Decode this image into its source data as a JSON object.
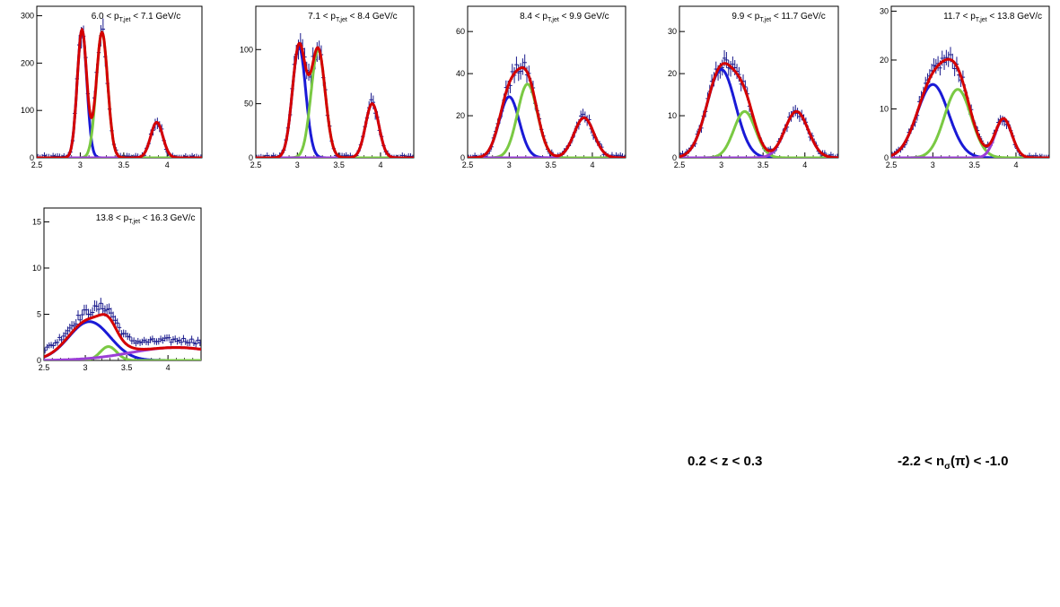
{
  "chart_data": [
    {
      "type": "scatter",
      "title_parts": {
        "lo": "6.0",
        "hi": "7.1",
        "unit": "GeV/c"
      },
      "xlim": [
        2.5,
        4.4
      ],
      "ylim": [
        0,
        320
      ],
      "xticks": [
        "2.5",
        "3",
        "3.5",
        "4"
      ],
      "xtick_values": [
        2.5,
        3,
        3.5,
        4
      ],
      "yticks": [
        "0",
        "100",
        "200",
        "300"
      ],
      "ytick_values": [
        0,
        100,
        200,
        300
      ],
      "components": [
        {
          "color": "#1a1ad6",
          "mu": 3.02,
          "sigma": 0.055,
          "amp": 270
        },
        {
          "color": "#7ac943",
          "mu": 3.25,
          "sigma": 0.065,
          "amp": 265
        },
        {
          "color": "#9b3fd6",
          "mu": 3.88,
          "sigma": 0.07,
          "amp": 75
        }
      ],
      "total_color": "#d40000",
      "error_scale": 14
    },
    {
      "type": "scatter",
      "title_parts": {
        "lo": "7.1",
        "hi": "8.4",
        "unit": "GeV/c"
      },
      "xlim": [
        2.5,
        4.4
      ],
      "ylim": [
        0,
        140
      ],
      "xticks": [
        "2.5",
        "3",
        "3.5",
        "4"
      ],
      "xtick_values": [
        2.5,
        3,
        3.5,
        4
      ],
      "yticks": [
        "0",
        "50",
        "100"
      ],
      "ytick_values": [
        0,
        50,
        100
      ],
      "components": [
        {
          "color": "#1a1ad6",
          "mu": 3.02,
          "sigma": 0.08,
          "amp": 103
        },
        {
          "color": "#7ac943",
          "mu": 3.25,
          "sigma": 0.085,
          "amp": 100
        },
        {
          "color": "#9b3fd6",
          "mu": 3.9,
          "sigma": 0.08,
          "amp": 50
        }
      ],
      "total_color": "#d40000",
      "error_scale": 9
    },
    {
      "type": "scatter",
      "title_parts": {
        "lo": "8.4",
        "hi": "9.9",
        "unit": "GeV/c"
      },
      "xlim": [
        2.5,
        4.4
      ],
      "ylim": [
        0,
        72
      ],
      "xticks": [
        "2.5",
        "3",
        "3.5",
        "4"
      ],
      "xtick_values": [
        2.5,
        3,
        3.5,
        4
      ],
      "yticks": [
        "0",
        "20",
        "40",
        "60"
      ],
      "ytick_values": [
        0,
        20,
        40,
        60
      ],
      "components": [
        {
          "color": "#1a1ad6",
          "mu": 3.0,
          "sigma": 0.12,
          "amp": 29
        },
        {
          "color": "#7ac943",
          "mu": 3.22,
          "sigma": 0.12,
          "amp": 35
        },
        {
          "color": "#9b3fd6",
          "mu": 3.9,
          "sigma": 0.12,
          "amp": 19
        }
      ],
      "total_color": "#d40000",
      "error_scale": 6
    },
    {
      "type": "scatter",
      "title_parts": {
        "lo": "9.9",
        "hi": "11.7",
        "unit": "GeV/c"
      },
      "xlim": [
        2.5,
        4.4
      ],
      "ylim": [
        0,
        36
      ],
      "xticks": [
        "2.5",
        "3",
        "3.5",
        "4"
      ],
      "xtick_values": [
        2.5,
        3,
        3.5,
        4
      ],
      "yticks": [
        "0",
        "10",
        "20",
        "30"
      ],
      "ytick_values": [
        0,
        10,
        20,
        30
      ],
      "components": [
        {
          "color": "#1a1ad6",
          "mu": 3.0,
          "sigma": 0.17,
          "amp": 21
        },
        {
          "color": "#7ac943",
          "mu": 3.28,
          "sigma": 0.13,
          "amp": 11
        },
        {
          "color": "#9b3fd6",
          "mu": 3.9,
          "sigma": 0.14,
          "amp": 11
        }
      ],
      "total_color": "#d40000",
      "error_scale": 4
    },
    {
      "type": "scatter",
      "title_parts": {
        "lo": "11.7",
        "hi": "13.8",
        "unit": "GeV/c"
      },
      "xlim": [
        2.5,
        4.4
      ],
      "ylim": [
        0,
        31
      ],
      "xticks": [
        "2.5",
        "3",
        "3.5",
        "4"
      ],
      "xtick_values": [
        2.5,
        3,
        3.5,
        4
      ],
      "yticks": [
        "0",
        "10",
        "20",
        "30"
      ],
      "ytick_values": [
        0,
        10,
        20,
        30
      ],
      "components": [
        {
          "color": "#1a1ad6",
          "mu": 3.0,
          "sigma": 0.19,
          "amp": 15
        },
        {
          "color": "#7ac943",
          "mu": 3.3,
          "sigma": 0.16,
          "amp": 14
        },
        {
          "color": "#9b3fd6",
          "mu": 3.85,
          "sigma": 0.1,
          "amp": 8
        }
      ],
      "total_color": "#d40000",
      "error_scale": 3.5
    },
    {
      "type": "scatter",
      "title_parts": {
        "lo": "13.8",
        "hi": "16.3",
        "unit": "GeV/c"
      },
      "xlim": [
        2.5,
        4.4
      ],
      "ylim": [
        0,
        16.5
      ],
      "xticks": [
        "2.5",
        "3",
        "3.5",
        "4"
      ],
      "xtick_values": [
        2.5,
        3,
        3.5,
        4
      ],
      "yticks": [
        "0",
        "5",
        "10",
        "15"
      ],
      "ytick_values": [
        0,
        5,
        10,
        15
      ],
      "components": [
        {
          "color": "#1a1ad6",
          "mu": 3.05,
          "sigma": 0.25,
          "amp": 4.2
        },
        {
          "color": "#7ac943",
          "mu": 3.28,
          "sigma": 0.1,
          "amp": 1.5
        },
        {
          "color": "#9b3fd6",
          "mu": 4.1,
          "sigma": 0.55,
          "amp": 1.4
        }
      ],
      "total_color": "#d40000",
      "error_scale": 2.5
    }
  ],
  "labels": {
    "z_range": "0.2 < z < 0.3",
    "nsigma": {
      "lo": "-2.2",
      "symbol": "n",
      "sub": "σ",
      "particle": "(π)",
      "hi": "-1.0"
    }
  },
  "title_template": {
    "symbol": "p",
    "sub": "T,jet"
  }
}
